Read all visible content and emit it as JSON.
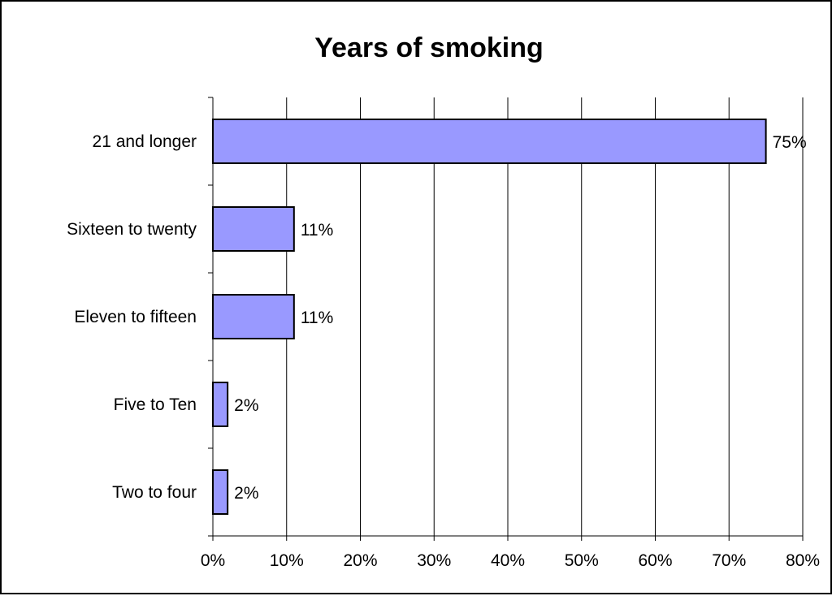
{
  "chart_data": {
    "type": "bar",
    "orientation": "horizontal",
    "title": "Years of smoking",
    "xlabel": "",
    "ylabel": "",
    "categories": [
      "21 and longer",
      "Sixteen to twenty",
      "Eleven to fifteen",
      "Five to Ten",
      "Two to four"
    ],
    "values": [
      75,
      11,
      11,
      2,
      2
    ],
    "data_labels": [
      "75%",
      "11%",
      "11%",
      "2%",
      "2%"
    ],
    "xlim": [
      0,
      80
    ],
    "x_ticks": [
      0,
      10,
      20,
      30,
      40,
      50,
      60,
      70,
      80
    ],
    "x_tick_labels": [
      "0%",
      "10%",
      "20%",
      "30%",
      "40%",
      "50%",
      "60%",
      "70%",
      "80%"
    ],
    "grid": "vertical",
    "legend": "none",
    "colors": {
      "bar_fill": "#9999ff",
      "bar_stroke": "#000000",
      "grid": "#000000"
    }
  }
}
